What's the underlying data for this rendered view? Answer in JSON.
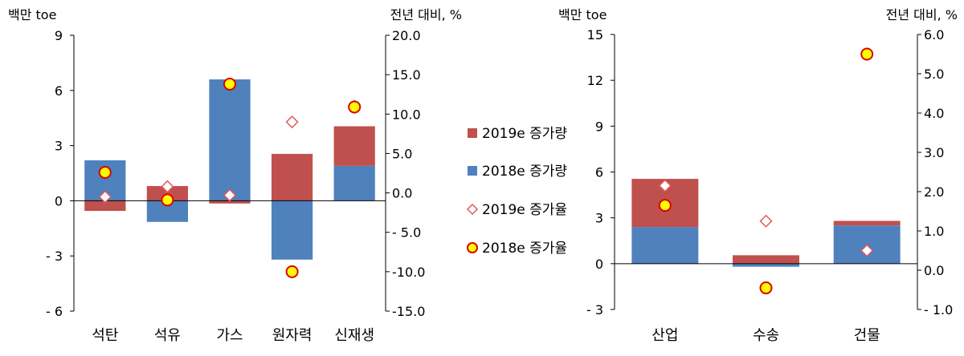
{
  "colors": {
    "inc2019": "#c0504d",
    "inc2018": "#4f81bd",
    "rate2019_stroke": "#e05a5a",
    "rate2018_fill": "#ffff00",
    "rate2018_stroke": "#e00000"
  },
  "legend": [
    {
      "label": "2019e 증가량",
      "kind": "bar2019"
    },
    {
      "label": "2018e 증가량",
      "kind": "bar2018"
    },
    {
      "label": "2019e 증가율",
      "kind": "diamond"
    },
    {
      "label": "2018e 증가율",
      "kind": "circle"
    }
  ],
  "chart_data": [
    {
      "type": "bar",
      "stacked": true,
      "left_unit": "백만 toe",
      "right_unit": "전년 대비, %",
      "categories": [
        "석탄",
        "석유",
        "가스",
        "원자력",
        "신재생"
      ],
      "ylim": [
        -6,
        9
      ],
      "y_ticks": [
        -6,
        -3,
        0,
        3,
        6,
        9
      ],
      "y_tick_labels": [
        "- 6",
        "- 3",
        "0",
        "3",
        "6",
        "9"
      ],
      "y2lim": [
        -15,
        20
      ],
      "y2_ticks": [
        -15,
        -10,
        -5,
        0,
        5,
        10,
        15,
        20
      ],
      "y2_tick_labels": [
        "-15.0",
        "-10.0",
        "- 5.0",
        "0.0",
        "5.0",
        "10.0",
        "15.0",
        "20.0"
      ],
      "series": [
        {
          "name": "2018e 증가량",
          "axis": "left",
          "values": [
            2.2,
            -1.15,
            6.6,
            -3.2,
            1.9
          ]
        },
        {
          "name": "2019e 증가량",
          "axis": "left",
          "values": [
            -0.55,
            0.8,
            -0.15,
            2.55,
            2.15
          ]
        },
        {
          "name": "2019e 증가율",
          "axis": "right",
          "values": [
            -0.5,
            0.8,
            -0.3,
            9.0,
            11.0
          ]
        },
        {
          "name": "2018e 증가율",
          "axis": "right",
          "values": [
            2.6,
            -0.9,
            13.8,
            -10.0,
            10.9
          ]
        }
      ]
    },
    {
      "type": "bar",
      "stacked": true,
      "left_unit": "백만 toe",
      "right_unit": "전년 대비, %",
      "categories": [
        "산업",
        "수송",
        "건물"
      ],
      "ylim": [
        -3,
        15
      ],
      "y_ticks": [
        -3,
        0,
        3,
        6,
        9,
        12,
        15
      ],
      "y_tick_labels": [
        "- 3",
        "0",
        "3",
        "6",
        "9",
        "12",
        "15"
      ],
      "y2lim": [
        -1,
        6
      ],
      "y2_ticks": [
        -1,
        0,
        1,
        2,
        3,
        4,
        5,
        6
      ],
      "y2_tick_labels": [
        "- 1.0",
        "0.0",
        "1.0",
        "2.0",
        "3.0",
        "4.0",
        "5.0",
        "6.0"
      ],
      "series": [
        {
          "name": "2018e 증가량",
          "axis": "left",
          "values": [
            2.4,
            -0.2,
            2.5
          ]
        },
        {
          "name": "2019e 증가량",
          "axis": "left",
          "values": [
            3.15,
            0.55,
            0.3
          ]
        },
        {
          "name": "2019e 증가율",
          "axis": "right",
          "values": [
            2.15,
            1.25,
            0.5
          ]
        },
        {
          "name": "2018e 증가율",
          "axis": "right",
          "values": [
            1.65,
            -0.45,
            5.5
          ]
        }
      ]
    }
  ]
}
